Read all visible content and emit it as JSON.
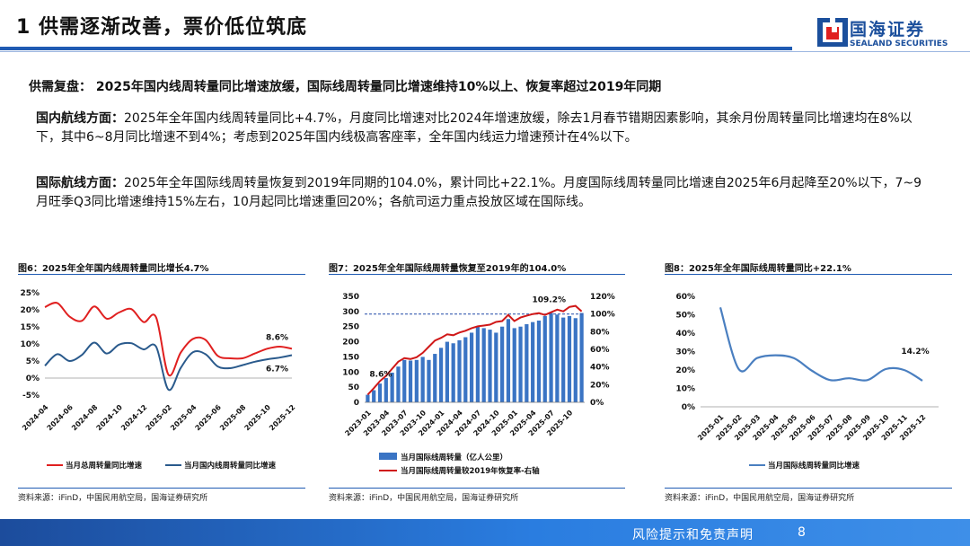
{
  "page": {
    "title": "1 供需逐渐改善，票价低位筑底",
    "logo": {
      "name": "国海证券",
      "sub": "SEALAND SECURITIES"
    },
    "headline": "供需复盘：  2025年国内线周转量同比增速放缓，国际线周转量同比增速维持10%以上、恢复率超过2019年同期",
    "domestic": {
      "label": "国内航线方面：",
      "text": "2025年全年国内线周转量同比+4.7%，月度同比增速对比2024年增速放缓，除去1月春节错期因素影响，其余月份周转量同比增速均在8%以下，其中6~8月同比增速不到4%；考虑到2025年国内线极高客座率，全年国内线运力增速预计在4%以下。"
    },
    "international": {
      "label": "国际航线方面：",
      "text": "2025年全年国际线周转量恢复到2019年同期的104.0%，累计同比+22.1%。月度国际线周转量同比增速自2025年6月起降至20%以下，7~9月旺季Q3同比增速维持15%左右，10月起同比增速重回20%；各航司运力重点投放区域在国际线。"
    },
    "footer": {
      "text": "风险提示和免责声明",
      "page": "8"
    }
  },
  "chart_data": [
    {
      "type": "line",
      "title": "图6：2025年全年国内线周转量同比增长4.7%",
      "source": "资料来源：iFinD，中国民用航空局，国海证券研究所",
      "x_ticks": [
        "2024-04",
        "2024-06",
        "2024-08",
        "2024-10",
        "2024-12",
        "2025-02",
        "2025-04",
        "2025-06",
        "2025-08",
        "2025-10",
        "2025-12"
      ],
      "y_ticks": [
        "25%",
        "20%",
        "15%",
        "10%",
        "5%",
        "0%",
        "-5%"
      ],
      "ylim": [
        -5,
        25
      ],
      "n_points": 21,
      "series": [
        {
          "name": "当月总周转量同比增速",
          "color": "#e02020",
          "values": [
            20.8,
            22.0,
            18.0,
            16.8,
            21.0,
            17.4,
            19.2,
            20.2,
            16.4,
            17.8,
            1.0,
            7.5,
            11.5,
            11.2,
            6.5,
            5.8,
            5.8,
            7.2,
            8.6,
            9.2,
            8.6
          ]
        },
        {
          "name": "当月国内线周转量同比增速",
          "color": "#2a5a8c",
          "values": [
            3.6,
            7.0,
            5.0,
            6.8,
            10.4,
            7.2,
            9.8,
            10.2,
            8.4,
            9.2,
            -3.4,
            3.0,
            7.6,
            7.0,
            3.4,
            2.9,
            3.8,
            4.8,
            5.5,
            6.0,
            6.7
          ]
        }
      ],
      "annotations": [
        "8.6%",
        "6.7%"
      ]
    },
    {
      "type": "bar+line",
      "title": "图7：2025年全年国际线周转量恢复至2019年的104.0%",
      "source": "资料来源：iFinD，中国民用航空局，国海证券研究所",
      "x_ticks": [
        "2023-01",
        "2023-04",
        "2023-07",
        "2023-10",
        "2024-01",
        "2024-04",
        "2024-07",
        "2024-10",
        "2025-01",
        "2025-04",
        "2025-07",
        "2025-10"
      ],
      "y_left_ticks": [
        "350",
        "300",
        "250",
        "200",
        "150",
        "100",
        "50",
        "0"
      ],
      "y_right_ticks": [
        "120%",
        "100%",
        "80%",
        "60%",
        "40%",
        "20%",
        "0%"
      ],
      "ylim_left": [
        0,
        350
      ],
      "ylim_right": [
        0,
        120
      ],
      "series": [
        {
          "name": "当月国际线周转量（亿人公里）",
          "color": "#3a74c4",
          "values": [
            25,
            40,
            62,
            80,
            98,
            118,
            140,
            138,
            140,
            150,
            140,
            160,
            180,
            200,
            195,
            205,
            215,
            230,
            250,
            245,
            240,
            230,
            250,
            275,
            245,
            250,
            258,
            265,
            270,
            285,
            295,
            290,
            280,
            285,
            278,
            295
          ]
        },
        {
          "name": "当月国际线周转量较2019年恢复率-右轴",
          "color": "#d01818",
          "values": [
            8.6,
            16,
            24,
            30,
            38,
            46,
            50,
            49,
            51,
            56,
            63,
            70,
            73,
            77,
            76,
            79,
            81,
            84,
            86,
            87,
            88,
            91,
            92,
            99,
            92,
            96,
            98,
            100,
            101,
            99,
            102,
            105,
            103,
            108,
            109.2,
            103
          ]
        }
      ],
      "reference_line": {
        "axis": "right",
        "value": 100
      },
      "annotations": [
        "8.6%",
        "109.2%"
      ]
    },
    {
      "type": "line",
      "title": "图8：2025年全年国际线周转量同比+22.1%",
      "source": "资料来源：iFinD，中国民用航空局，国海证券研究所",
      "x_ticks": [
        "2025-01",
        "2025-02",
        "2025-03",
        "2025-04",
        "2025-05",
        "2025-06",
        "2025-07",
        "2025-08",
        "2025-09",
        "2025-10",
        "2025-11",
        "2025-12"
      ],
      "y_ticks": [
        "60%",
        "50%",
        "40%",
        "30%",
        "20%",
        "10%",
        "0%"
      ],
      "ylim": [
        0,
        60
      ],
      "series": [
        {
          "name": "当月国际线周转量同比增速",
          "color": "#4a7fc0",
          "values": [
            54.0,
            20.5,
            26.5,
            28.0,
            26.5,
            19.5,
            14.5,
            15.5,
            14.5,
            20.5,
            20.0,
            14.2
          ]
        }
      ],
      "annotations": [
        "14.2%"
      ]
    }
  ]
}
